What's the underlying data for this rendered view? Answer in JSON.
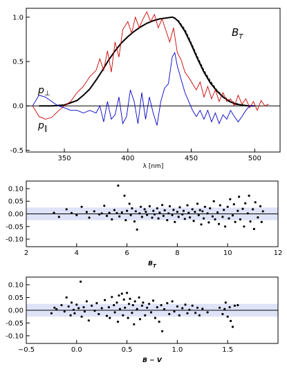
{
  "chart_data": [
    {
      "type": "line",
      "title": "",
      "annotation": "B_T",
      "xlabel": "λ [nm]",
      "ylabel": "",
      "xlim": [
        320,
        520
      ],
      "ylim": [
        -0.52,
        1.1
      ],
      "xticks": [
        350,
        400,
        450,
        500
      ],
      "yticks": [
        -0.5,
        0.0,
        0.5,
        1.0
      ],
      "ytick_labels": [
        "-0.5",
        "0.0",
        "0.5",
        "1.0"
      ],
      "zero_line": true,
      "series": [
        {
          "name": "B_T",
          "color": "#000000",
          "x": [
            330,
            340,
            350,
            360,
            365,
            370,
            375,
            380,
            385,
            390,
            395,
            400,
            405,
            410,
            415,
            420,
            425,
            430,
            435,
            437,
            440,
            445,
            450,
            455,
            460,
            465,
            470,
            475,
            480,
            485,
            490,
            495,
            500
          ],
          "y": [
            0.0,
            0.0,
            0.01,
            0.06,
            0.12,
            0.19,
            0.29,
            0.4,
            0.52,
            0.62,
            0.71,
            0.78,
            0.84,
            0.89,
            0.93,
            0.96,
            0.98,
            0.99,
            1.0,
            0.99,
            0.95,
            0.84,
            0.69,
            0.53,
            0.38,
            0.26,
            0.17,
            0.1,
            0.05,
            0.02,
            0.01,
            0.0,
            0.0
          ]
        },
        {
          "name": "",
          "color": "#000000",
          "dashed": true,
          "x": [
            430,
            435,
            440,
            445,
            450,
            455,
            460,
            465,
            470,
            475,
            480,
            485,
            490,
            495,
            500
          ],
          "y": [
            0.99,
            1.0,
            0.96,
            0.86,
            0.71,
            0.55,
            0.4,
            0.28,
            0.18,
            0.11,
            0.06,
            0.03,
            0.01,
            0.0,
            0.0
          ]
        },
        {
          "name": "p∥",
          "color": "#cc0000",
          "x": [
            325,
            330,
            335,
            340,
            345,
            350,
            355,
            360,
            365,
            370,
            375,
            378,
            381,
            384,
            387,
            390,
            393,
            396,
            400,
            403,
            406,
            409,
            412,
            415,
            418,
            421,
            424,
            427,
            430,
            433,
            436,
            439,
            442,
            445,
            448,
            451,
            454,
            457,
            460,
            463,
            466,
            469,
            472,
            475,
            478,
            481,
            484,
            487,
            490,
            493,
            496,
            499,
            502,
            505,
            508,
            511
          ],
          "y": [
            0.0,
            -0.12,
            -0.15,
            -0.13,
            -0.06,
            0.0,
            0.05,
            0.15,
            0.22,
            0.33,
            0.4,
            0.53,
            0.4,
            0.62,
            0.38,
            0.72,
            0.55,
            0.86,
            0.95,
            0.82,
            1.0,
            0.88,
            0.98,
            1.06,
            0.95,
            1.03,
            0.88,
            0.98,
            0.85,
            0.72,
            0.88,
            0.6,
            0.52,
            0.38,
            0.32,
            0.25,
            0.18,
            0.27,
            0.1,
            0.22,
            0.08,
            0.18,
            0.05,
            0.15,
            0.05,
            0.08,
            0.0,
            0.12,
            0.02,
            0.08,
            -0.02,
            0.05,
            -0.05,
            0.06,
            0.0,
            0.02
          ]
        },
        {
          "name": "p⊥",
          "color": "#0000cc",
          "x": [
            325,
            330,
            335,
            340,
            345,
            350,
            355,
            360,
            365,
            370,
            375,
            378,
            381,
            384,
            387,
            390,
            393,
            396,
            399,
            402,
            405,
            408,
            411,
            414,
            417,
            420,
            423,
            426,
            429,
            432,
            435,
            437,
            439,
            442,
            445,
            448,
            451,
            454,
            457,
            460,
            463,
            466,
            469,
            472,
            475,
            478,
            481,
            484,
            487,
            490,
            493,
            496,
            500
          ],
          "y": [
            0.0,
            0.12,
            0.1,
            0.05,
            0.0,
            -0.02,
            -0.05,
            -0.05,
            -0.08,
            -0.05,
            -0.08,
            0.0,
            -0.18,
            0.05,
            -0.15,
            -0.1,
            0.1,
            -0.2,
            -0.12,
            0.18,
            0.05,
            -0.2,
            0.15,
            -0.15,
            0.1,
            -0.08,
            -0.22,
            0.05,
            0.2,
            0.25,
            0.55,
            0.6,
            0.45,
            0.3,
            0.15,
            0.05,
            -0.05,
            -0.12,
            -0.05,
            -0.15,
            -0.05,
            -0.18,
            -0.08,
            -0.2,
            -0.1,
            -0.15,
            -0.05,
            -0.12,
            -0.18,
            -0.12,
            -0.05,
            0.0,
            0.0
          ]
        }
      ]
    },
    {
      "type": "scatter",
      "title": "",
      "xlabel": "B_T",
      "ylabel": "",
      "xlim": [
        2,
        12
      ],
      "ylim": [
        -0.13,
        0.13
      ],
      "xticks": [
        2,
        4,
        6,
        8,
        10,
        12
      ],
      "yticks": [
        -0.1,
        -0.05,
        0.0,
        0.05,
        0.1
      ],
      "ytick_labels": [
        "-0.10",
        "-0.05",
        "0.00",
        "0.05",
        "0.10"
      ],
      "band": [
        -0.025,
        0.025
      ],
      "zero_line": true,
      "points": [
        [
          3.1,
          0.004
        ],
        [
          3.3,
          -0.012
        ],
        [
          3.6,
          0.018
        ],
        [
          3.8,
          0.003
        ],
        [
          4.0,
          -0.005
        ],
        [
          4.2,
          0.028
        ],
        [
          4.4,
          0.007
        ],
        [
          4.5,
          -0.015
        ],
        [
          4.7,
          0.01
        ],
        [
          4.9,
          -0.002
        ],
        [
          5.0,
          0.002
        ],
        [
          5.1,
          0.032
        ],
        [
          5.2,
          -0.008
        ],
        [
          5.3,
          0.004
        ],
        [
          5.4,
          -0.022
        ],
        [
          5.5,
          0.015
        ],
        [
          5.6,
          0.003
        ],
        [
          5.65,
          0.112
        ],
        [
          5.7,
          -0.01
        ],
        [
          5.8,
          0.006
        ],
        [
          5.9,
          0.072
        ],
        [
          5.95,
          -0.025
        ],
        [
          6.0,
          0.012
        ],
        [
          6.1,
          0.04
        ],
        [
          6.15,
          -0.005
        ],
        [
          6.2,
          0.022
        ],
        [
          6.3,
          -0.03
        ],
        [
          6.35,
          0.01
        ],
        [
          6.4,
          -0.062
        ],
        [
          6.5,
          0.002
        ],
        [
          6.55,
          0.028
        ],
        [
          6.6,
          -0.012
        ],
        [
          6.7,
          0.018
        ],
        [
          6.75,
          0.008
        ],
        [
          6.8,
          -0.004
        ],
        [
          6.9,
          0.03
        ],
        [
          7.0,
          -0.015
        ],
        [
          7.05,
          0.012
        ],
        [
          7.1,
          -0.002
        ],
        [
          7.2,
          0.022
        ],
        [
          7.25,
          -0.018
        ],
        [
          7.3,
          0.005
        ],
        [
          7.4,
          0.035
        ],
        [
          7.45,
          -0.008
        ],
        [
          7.5,
          0.014
        ],
        [
          7.6,
          -0.025
        ],
        [
          7.65,
          0.002
        ],
        [
          7.7,
          0.03
        ],
        [
          7.8,
          -0.005
        ],
        [
          7.85,
          0.016
        ],
        [
          7.9,
          -0.032
        ],
        [
          8.0,
          0.008
        ],
        [
          8.05,
          -0.012
        ],
        [
          8.1,
          0.026
        ],
        [
          8.2,
          -0.002
        ],
        [
          8.25,
          0.012
        ],
        [
          8.3,
          -0.02
        ],
        [
          8.4,
          0.034
        ],
        [
          8.45,
          0.004
        ],
        [
          8.5,
          -0.014
        ],
        [
          8.6,
          0.018
        ],
        [
          8.65,
          -0.028
        ],
        [
          8.7,
          0.008
        ],
        [
          8.8,
          0.04
        ],
        [
          8.85,
          -0.005
        ],
        [
          8.9,
          0.015
        ],
        [
          8.95,
          -0.042
        ],
        [
          9.0,
          0.01
        ],
        [
          9.05,
          -0.018
        ],
        [
          9.1,
          0.028
        ],
        [
          9.2,
          0.002
        ],
        [
          9.25,
          -0.034
        ],
        [
          9.3,
          0.022
        ],
        [
          9.4,
          -0.01
        ],
        [
          9.45,
          0.05
        ],
        [
          9.5,
          -0.022
        ],
        [
          9.6,
          0.006
        ],
        [
          9.65,
          -0.04
        ],
        [
          9.7,
          0.034
        ],
        [
          9.8,
          -0.012
        ],
        [
          9.85,
          0.016
        ],
        [
          9.9,
          -0.05
        ],
        [
          10.0,
          0.028
        ],
        [
          10.05,
          -0.018
        ],
        [
          10.1,
          0.058
        ],
        [
          10.2,
          -0.006
        ],
        [
          10.25,
          0.038
        ],
        [
          10.3,
          -0.032
        ],
        [
          10.4,
          0.012
        ],
        [
          10.45,
          0.068
        ],
        [
          10.5,
          -0.022
        ],
        [
          10.6,
          0.02
        ],
        [
          10.65,
          -0.05
        ],
        [
          10.7,
          0.042
        ],
        [
          10.8,
          0.002
        ],
        [
          10.85,
          0.072
        ],
        [
          10.9,
          -0.03
        ],
        [
          11.0,
          0.018
        ],
        [
          11.05,
          -0.06
        ],
        [
          11.1,
          0.046
        ],
        [
          11.2,
          -0.014
        ],
        [
          11.3,
          0.03
        ],
        [
          11.35,
          -0.032
        ],
        [
          11.4,
          0.01
        ]
      ]
    },
    {
      "type": "scatter",
      "title": "",
      "xlabel": "B − V",
      "ylabel": "",
      "xlim": [
        -0.5,
        2.0
      ],
      "ylim": [
        -0.13,
        0.13
      ],
      "xticks": [
        -0.5,
        0.0,
        0.5,
        1.0,
        1.5,
        2.0
      ],
      "xtick_labels": [
        "−0.5",
        "0.0",
        "0.5",
        "1.0",
        "1.5",
        ""
      ],
      "yticks": [
        -0.1,
        -0.05,
        0.0,
        0.05,
        0.1
      ],
      "ytick_labels": [
        "-0.10",
        "-0.05",
        "0.00",
        "0.05",
        "0.10"
      ],
      "band": [
        -0.025,
        0.025
      ],
      "zero_line": true,
      "points": [
        [
          -0.25,
          -0.012
        ],
        [
          -0.22,
          0.01
        ],
        [
          -0.2,
          0.004
        ],
        [
          -0.15,
          0.02
        ],
        [
          -0.12,
          -0.005
        ],
        [
          -0.1,
          0.05
        ],
        [
          -0.08,
          0.015
        ],
        [
          -0.06,
          -0.02
        ],
        [
          -0.05,
          0.03
        ],
        [
          -0.03,
          0.002
        ],
        [
          -0.02,
          -0.012
        ],
        [
          0.0,
          0.022
        ],
        [
          0.02,
          0.008
        ],
        [
          0.04,
          0.112
        ],
        [
          0.05,
          -0.025
        ],
        [
          0.07,
          0.012
        ],
        [
          0.08,
          -0.005
        ],
        [
          0.1,
          0.035
        ],
        [
          0.12,
          -0.04
        ],
        [
          0.15,
          0.018
        ],
        [
          0.18,
          -0.002
        ],
        [
          0.2,
          0.028
        ],
        [
          0.22,
          -0.015
        ],
        [
          0.25,
          0.008
        ],
        [
          0.28,
          0.04
        ],
        [
          0.3,
          -0.022
        ],
        [
          0.32,
          0.012
        ],
        [
          0.33,
          -0.03
        ],
        [
          0.35,
          0.052
        ],
        [
          0.37,
          0.02
        ],
        [
          0.38,
          -0.008
        ],
        [
          0.4,
          0.03
        ],
        [
          0.41,
          -0.045
        ],
        [
          0.42,
          0.058
        ],
        [
          0.43,
          0.005
        ],
        [
          0.45,
          0.065
        ],
        [
          0.46,
          -0.02
        ],
        [
          0.47,
          0.042
        ],
        [
          0.48,
          0.01
        ],
        [
          0.5,
          0.068
        ],
        [
          0.51,
          -0.03
        ],
        [
          0.52,
          0.025
        ],
        [
          0.53,
          0.045
        ],
        [
          0.55,
          -0.01
        ],
        [
          0.56,
          0.02
        ],
        [
          0.57,
          -0.055
        ],
        [
          0.58,
          0.035
        ],
        [
          0.6,
          0.005
        ],
        [
          0.62,
          0.05
        ],
        [
          0.63,
          -0.035
        ],
        [
          0.65,
          0.018
        ],
        [
          0.66,
          0.03
        ],
        [
          0.68,
          -0.02
        ],
        [
          0.7,
          0.01
        ],
        [
          0.72,
          0.025
        ],
        [
          0.74,
          -0.008
        ],
        [
          0.76,
          0.038
        ],
        [
          0.78,
          -0.03
        ],
        [
          0.8,
          0.012
        ],
        [
          0.82,
          -0.045
        ],
        [
          0.84,
          0.02
        ],
        [
          0.85,
          -0.082
        ],
        [
          0.87,
          0.004
        ],
        [
          0.9,
          0.028
        ],
        [
          0.92,
          -0.015
        ],
        [
          0.95,
          0.035
        ],
        [
          0.97,
          -0.005
        ],
        [
          1.0,
          0.015
        ],
        [
          1.02,
          -0.02
        ],
        [
          1.05,
          0.008
        ],
        [
          1.08,
          0.022
        ],
        [
          1.1,
          -0.012
        ],
        [
          1.12,
          0.002
        ],
        [
          1.15,
          0.018
        ],
        [
          1.18,
          -0.01
        ],
        [
          1.2,
          0.01
        ],
        [
          1.22,
          -0.02
        ],
        [
          1.25,
          0.006
        ],
        [
          1.3,
          -0.008
        ],
        [
          1.42,
          0.01
        ],
        [
          1.45,
          -0.015
        ],
        [
          1.47,
          0.005
        ],
        [
          1.48,
          0.03
        ],
        [
          1.5,
          -0.025
        ],
        [
          1.52,
          0.012
        ],
        [
          1.53,
          -0.042
        ],
        [
          1.55,
          -0.065
        ],
        [
          1.57,
          0.018
        ],
        [
          1.6,
          0.02
        ]
      ]
    }
  ]
}
